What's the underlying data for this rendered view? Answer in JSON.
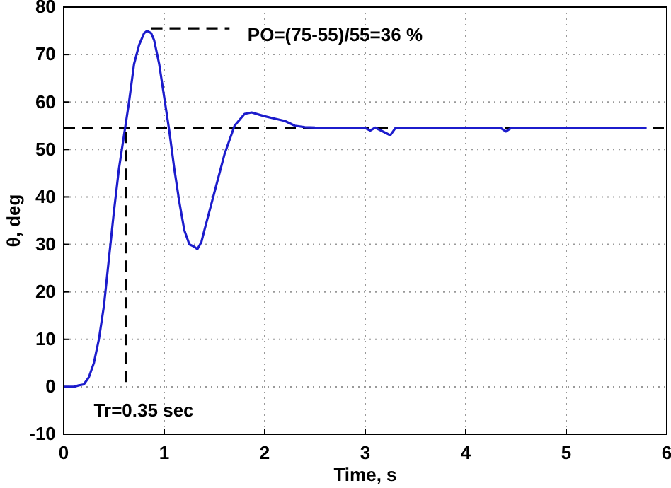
{
  "chart_data": {
    "type": "line",
    "xlabel": "Time, s",
    "ylabel": "θ, deg",
    "xlim": [
      0,
      6
    ],
    "ylim": [
      -10,
      80
    ],
    "xticks": [
      0,
      1,
      2,
      3,
      4,
      5,
      6
    ],
    "yticks": [
      -10,
      0,
      10,
      20,
      30,
      40,
      50,
      60,
      70,
      80
    ],
    "grid": true,
    "line_style": "solid",
    "series": [
      {
        "color": "#1c1ccc",
        "x": [
          0,
          0.1,
          0.15,
          0.2,
          0.25,
          0.3,
          0.35,
          0.4,
          0.45,
          0.5,
          0.55,
          0.6,
          0.65,
          0.7,
          0.75,
          0.8,
          0.83,
          0.87,
          0.9,
          0.95,
          1.0,
          1.05,
          1.1,
          1.15,
          1.2,
          1.25,
          1.3,
          1.33,
          1.37,
          1.4,
          1.45,
          1.5,
          1.6,
          1.7,
          1.8,
          1.87,
          1.95,
          2.0,
          2.1,
          2.2,
          2.3,
          2.4,
          2.5,
          3.0,
          3.05,
          3.1,
          3.25,
          3.3,
          3.5,
          4.0,
          4.35,
          4.4,
          4.45,
          5.0,
          5.5,
          5.8
        ],
        "values": [
          0,
          0,
          0.3,
          0.5,
          2,
          5,
          10,
          17,
          27,
          37,
          46,
          53,
          60,
          68,
          72,
          74.5,
          75,
          74.5,
          73,
          68,
          61,
          54,
          46,
          39,
          33,
          30,
          29.5,
          29,
          30.5,
          33,
          37,
          41,
          49,
          55,
          57.5,
          57.8,
          57.3,
          57,
          56.5,
          56,
          55,
          54.7,
          54.6,
          54.5,
          54,
          54.6,
          53,
          54.5,
          54.5,
          54.5,
          54.5,
          53.8,
          54.5,
          54.5,
          54.5,
          54.5
        ]
      },
      {
        "type": "line",
        "color": "#000000",
        "line_style": "dashed",
        "x": [
          0.62,
          0.62
        ],
        "values": [
          1,
          54.5
        ]
      },
      {
        "type": "line",
        "color": "#000000",
        "line_style": "dashed",
        "x": [
          0.87,
          1.65
        ],
        "values": [
          75.5,
          75.5
        ]
      }
    ],
    "ref_lines": [
      {
        "axis": "y",
        "value": 54.5,
        "color": "#000000",
        "line_style": "dashed"
      }
    ],
    "annotations": [
      "PO=(75-55)/55=36 %",
      "Tr=0.35 sec"
    ]
  }
}
